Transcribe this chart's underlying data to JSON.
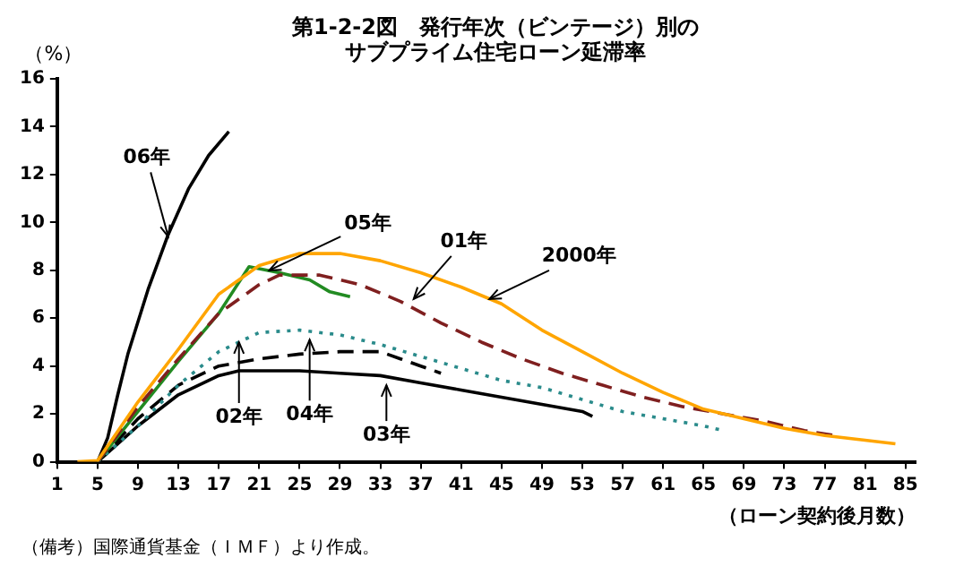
{
  "chart_data": {
    "type": "line",
    "title": "第1-2-2図　発行年次（ビンテージ）別のサブプライム住宅ローン延滞率",
    "ylabel": "（%）",
    "xlabel": "（ローン契約後月数）",
    "xlim": [
      1,
      86
    ],
    "xticks": [
      1,
      5,
      9,
      13,
      17,
      21,
      25,
      29,
      33,
      37,
      41,
      45,
      49,
      53,
      57,
      61,
      65,
      69,
      73,
      77,
      81,
      85
    ],
    "ylim": [
      0,
      16
    ],
    "yticks": [
      0,
      2,
      4,
      6,
      8,
      10,
      12,
      14,
      16
    ],
    "grid": false,
    "legend": false,
    "marker": "none",
    "series": [
      {
        "color": "#ffa500",
        "line_style": "solid",
        "x": [
          3,
          5,
          9,
          13,
          17,
          21,
          25,
          29,
          33,
          37,
          41,
          45,
          49,
          53,
          57,
          61,
          65,
          69,
          73,
          77,
          81,
          84
        ],
        "values": [
          0,
          0.05,
          2.5,
          4.7,
          7.0,
          8.2,
          8.7,
          8.7,
          8.4,
          7.9,
          7.3,
          6.6,
          5.5,
          4.6,
          3.7,
          2.9,
          2.2,
          1.8,
          1.4,
          1.1,
          0.9,
          0.75
        ]
      },
      {
        "color": "#7f1f1f",
        "line_style": "dashed",
        "x": [
          5,
          9,
          13,
          17,
          21,
          23,
          27,
          31,
          35,
          39,
          43,
          47,
          51,
          55,
          59,
          63,
          67,
          71,
          75,
          78
        ],
        "values": [
          0,
          2.3,
          4.3,
          6.2,
          7.4,
          7.8,
          7.8,
          7.4,
          6.7,
          5.8,
          5.0,
          4.3,
          3.7,
          3.2,
          2.7,
          2.3,
          2.0,
          1.7,
          1.3,
          1.1
        ]
      },
      {
        "color": "#228b22",
        "line_style": "solid",
        "x": [
          5,
          9,
          13,
          17,
          20,
          23,
          26,
          28,
          30
        ],
        "values": [
          0,
          2.1,
          4.2,
          6.2,
          8.15,
          7.9,
          7.6,
          7.1,
          6.9
        ]
      },
      {
        "color": "#000000",
        "line_style": "solid",
        "x": [
          5,
          6,
          7,
          8,
          10,
          12,
          14,
          16,
          18
        ],
        "values": [
          0,
          1,
          2.8,
          4.5,
          7.2,
          9.5,
          11.4,
          12.8,
          13.8
        ]
      },
      {
        "color": "#2a8b8b",
        "line_style": "dotted",
        "x": [
          5,
          9,
          13,
          17,
          21,
          25,
          29,
          33,
          37,
          41,
          45,
          49,
          53,
          57,
          61,
          65,
          67
        ],
        "values": [
          0,
          1.5,
          3.2,
          4.6,
          5.4,
          5.5,
          5.3,
          4.9,
          4.4,
          3.9,
          3.4,
          3.1,
          2.6,
          2.1,
          1.8,
          1.5,
          1.3
        ]
      },
      {
        "color": "#000000",
        "line_style": "dashed",
        "x": [
          5,
          9,
          13,
          17,
          21,
          25,
          29,
          33,
          35,
          37,
          39
        ],
        "values": [
          0,
          1.8,
          3.2,
          4.0,
          4.3,
          4.5,
          4.6,
          4.6,
          4.3,
          4.0,
          3.7
        ]
      },
      {
        "color": "#000000",
        "line_style": "solid",
        "x": [
          5,
          9,
          13,
          17,
          19,
          25,
          29,
          33,
          37,
          41,
          45,
          49,
          53,
          54
        ],
        "values": [
          0,
          1.5,
          2.8,
          3.6,
          3.8,
          3.8,
          3.7,
          3.6,
          3.3,
          3.0,
          2.7,
          2.4,
          2.1,
          1.9
        ]
      }
    ],
    "annotations": [
      {
        "text": "06年",
        "x": 12,
        "y": 9.4
      },
      {
        "text": "05年",
        "x": 22,
        "y": 8.0
      },
      {
        "text": "01年",
        "x": 36.3,
        "y": 6.8
      },
      {
        "text": "2000年",
        "x": 43.8,
        "y": 6.8
      },
      {
        "text": "02年",
        "x": 19,
        "y": 5.0
      },
      {
        "text": "04年",
        "x": 26,
        "y": 5.1
      },
      {
        "text": "03年",
        "x": 33.6,
        "y": 3.2
      },
      "（備考）国際通貨基金（ＩＭＦ）より作成。"
    ]
  }
}
